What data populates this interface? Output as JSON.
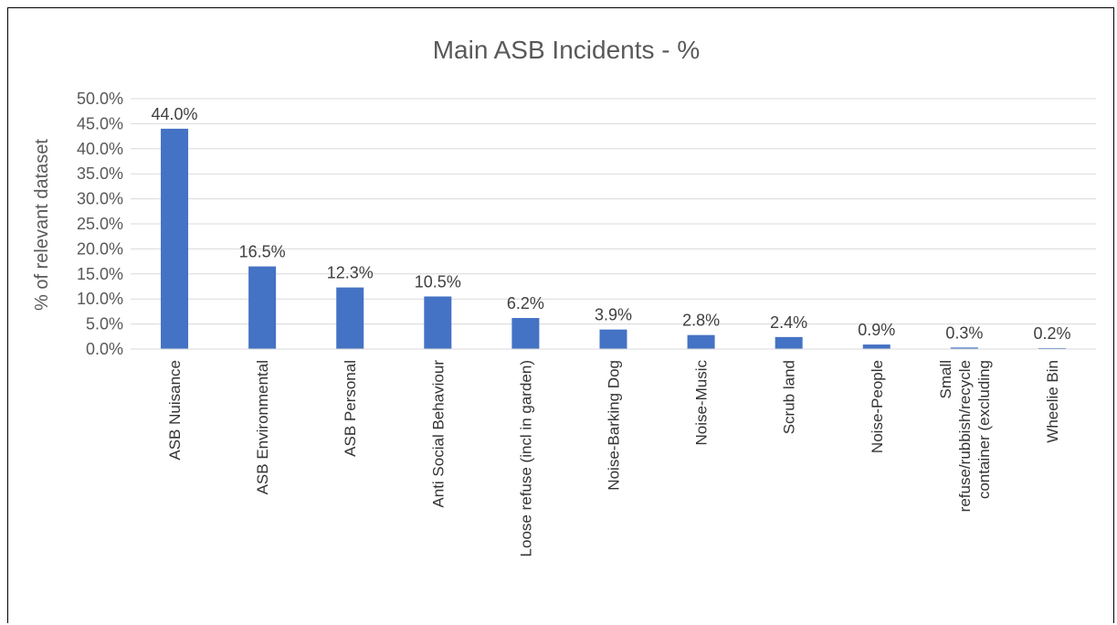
{
  "chart_data": {
    "type": "bar",
    "title": "Main ASB Incidents - %",
    "xlabel": "",
    "ylabel": "% of relevant dataset",
    "ylim": [
      0,
      50
    ],
    "ytick_step": 5,
    "yticks": [
      "0.0%",
      "5.0%",
      "10.0%",
      "15.0%",
      "20.0%",
      "25.0%",
      "30.0%",
      "35.0%",
      "40.0%",
      "45.0%",
      "50.0%"
    ],
    "grid": true,
    "legend": "none",
    "bar_color": "#4472C4",
    "categories": [
      [
        "ASB Nuisance"
      ],
      [
        "ASB Environmental"
      ],
      [
        "ASB Personal"
      ],
      [
        "Anti Social Behaviour"
      ],
      [
        "Loose refuse (incl in garden)"
      ],
      [
        "Noise-Barking Dog"
      ],
      [
        "Noise-Music"
      ],
      [
        "Scrub land"
      ],
      [
        "Noise-People"
      ],
      [
        "Small",
        "refuse/rubbish/recycle",
        "container (excluding"
      ],
      [
        "Wheelie Bin"
      ]
    ],
    "values": [
      44.0,
      16.5,
      12.3,
      10.5,
      6.2,
      3.9,
      2.8,
      2.4,
      0.9,
      0.3,
      0.2
    ],
    "data_labels": [
      "44.0%",
      "16.5%",
      "12.3%",
      "10.5%",
      "6.2%",
      "3.9%",
      "2.8%",
      "2.4%",
      "0.9%",
      "0.3%",
      "0.2%"
    ]
  }
}
